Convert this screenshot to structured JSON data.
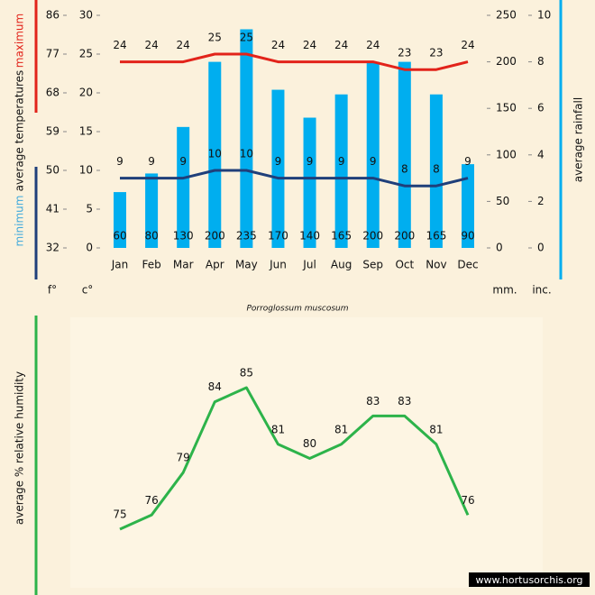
{
  "chart_data": [
    {
      "type": "bar",
      "subtitle": "Porroglossum muscosum",
      "ylabel": "average temperatures",
      "y2label": "average rainfall",
      "units": [
        "f°",
        "c°",
        "mm.",
        "inc."
      ],
      "categories": [
        "Jan",
        "Feb",
        "Mar",
        "Apr",
        "May",
        "Jun",
        "Jul",
        "Aug",
        "Sep",
        "Oct",
        "Nov",
        "Dec"
      ],
      "series": [
        {
          "name": "average rainfall",
          "color": "#00aeef",
          "axis": "y2",
          "values": [
            60,
            80,
            130,
            200,
            235,
            170,
            140,
            165,
            200,
            200,
            165,
            90
          ]
        },
        {
          "name": "maximum",
          "color": "#e2231a",
          "values": [
            24,
            24,
            24,
            25,
            25,
            24,
            24,
            24,
            24,
            23,
            23,
            24
          ]
        },
        {
          "name": "minimum",
          "color": "#1f3f7a",
          "values": [
            9,
            9,
            9,
            10,
            10,
            9,
            9,
            9,
            9,
            8,
            8,
            9
          ]
        }
      ],
      "ylim": [
        0,
        30
      ],
      "yticks": [
        0,
        5,
        10,
        15,
        20,
        25,
        30
      ],
      "y2lim": [
        0,
        250
      ],
      "y2ticks": [
        0,
        50,
        100,
        150,
        200,
        250
      ],
      "fahrenheit_lim": [
        32,
        86
      ],
      "fahrenheit_ticks": [
        32,
        41,
        50,
        59,
        68,
        77,
        86
      ],
      "inch_lim": [
        0,
        10
      ],
      "inch_ticks": [
        0,
        2,
        4,
        6,
        8,
        10
      ]
    },
    {
      "type": "line",
      "ylabel": "average % relative humidity",
      "series": [
        {
          "name": "relative humidity",
          "color": "#2db34a",
          "values": [
            75,
            76,
            79,
            84,
            85,
            81,
            80,
            81,
            83,
            83,
            81,
            76
          ]
        }
      ],
      "watermark": "www.hortusorchis.org"
    }
  ]
}
